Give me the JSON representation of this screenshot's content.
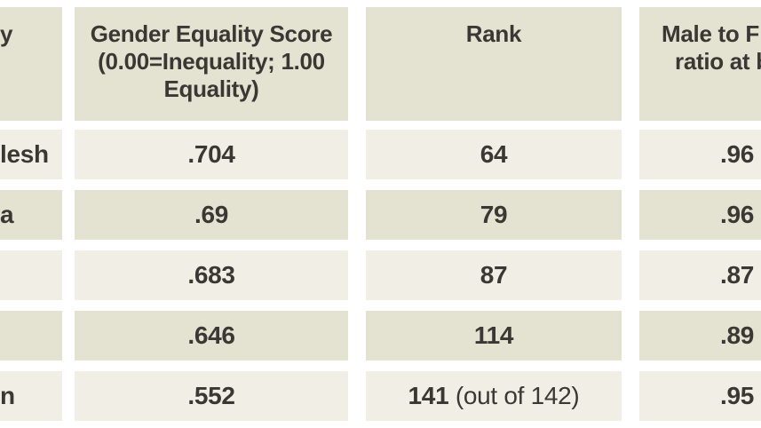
{
  "colors": {
    "header_bg": "#e4e2d0",
    "row_dark_bg": "#e4e2d0",
    "row_light_bg": "#f1efe5",
    "gutter": "#ffffff",
    "text": "#3a3834"
  },
  "header": {
    "country_fragment": "y",
    "score_lines": [
      "Gender Equality Score",
      "(0.00=Inequality; 1.00",
      "Equality)"
    ],
    "rank": "Rank",
    "ratio_lines": [
      "Male to F",
      "ratio at b"
    ]
  },
  "rows": [
    {
      "country_fragment": "lesh",
      "score": ".704",
      "rank": "64",
      "rank_note": "",
      "ratio": ".96"
    },
    {
      "country_fragment": "a",
      "score": ".69",
      "rank": "79",
      "rank_note": "",
      "ratio": ".96"
    },
    {
      "country_fragment": "",
      "score": ".683",
      "rank": "87",
      "rank_note": "",
      "ratio": ".87"
    },
    {
      "country_fragment": "",
      "score": ".646",
      "rank": "114",
      "rank_note": "",
      "ratio": ".89"
    },
    {
      "country_fragment": "n",
      "score": ".552",
      "rank": "141",
      "rank_note": " (out of 142)",
      "ratio": ".95"
    }
  ],
  "chart_data": {
    "type": "table",
    "columns": [
      {
        "header_visible": "y",
        "clipped": "left"
      },
      {
        "header_visible": "Gender Equality Score (0.00=Inequality; 1.00 Equality)",
        "clipped": "none"
      },
      {
        "header_visible": "Rank",
        "clipped": "none"
      },
      {
        "header_visible": "Male to F ratio at b",
        "clipped": "right"
      }
    ],
    "rows": [
      [
        "lesh",
        ".704",
        "64",
        ".96"
      ],
      [
        "a",
        ".69",
        "79",
        ".96"
      ],
      [
        "",
        ".683",
        "87",
        ".87"
      ],
      [
        "",
        ".646",
        "114",
        ".89"
      ],
      [
        "n",
        ".552",
        "141 (out of 142)",
        ".95"
      ]
    ],
    "layout": {
      "striping": "alternating light/dark cream rows",
      "gridlines": "white gutters between all cells"
    }
  }
}
